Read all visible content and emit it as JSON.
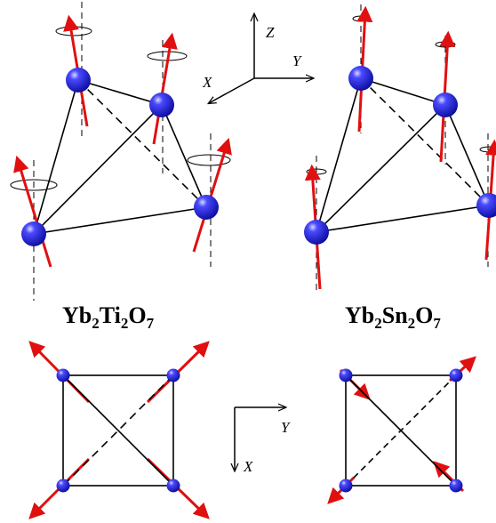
{
  "colors": {
    "atom": "#1515e0",
    "spin": "#e01010",
    "bond": "#000000"
  },
  "axes_3d": {
    "z_label": "Z",
    "y_label": "Y",
    "x_label": "X"
  },
  "axes_2d": {
    "y_label": "Y",
    "x_label": "X"
  },
  "compounds": [
    {
      "element": "Yb",
      "sub1": "2",
      "mid": "Ti",
      "sub2": "2",
      "end": "O",
      "sub3": "7"
    },
    {
      "element": "Yb",
      "sub1": "2",
      "mid": "Sn",
      "sub2": "2",
      "end": "O",
      "sub3": "7"
    }
  ]
}
